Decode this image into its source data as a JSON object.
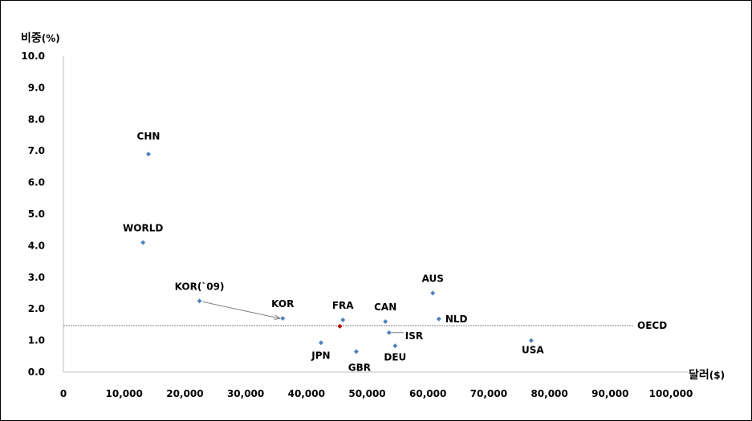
{
  "chart_data": {
    "type": "scatter",
    "ylabel": {
      "main": "비중",
      "unit": "(%)"
    },
    "xlabel": {
      "main": "달러",
      "unit": "($)"
    },
    "xlim": [
      0,
      100000
    ],
    "ylim": [
      0,
      10
    ],
    "x_ticks": [
      "0",
      "10,000",
      "20,000",
      "30,000",
      "40,000",
      "50,000",
      "60,000",
      "70,000",
      "80,000",
      "90,000",
      "100,000"
    ],
    "x_tick_values": [
      0,
      10000,
      20000,
      30000,
      40000,
      50000,
      60000,
      70000,
      80000,
      90000,
      100000
    ],
    "y_ticks": [
      "0.0",
      "1.0",
      "2.0",
      "3.0",
      "4.0",
      "5.0",
      "6.0",
      "7.0",
      "8.0",
      "9.0",
      "10.0"
    ],
    "y_tick_values": [
      0,
      1,
      2,
      3,
      4,
      5,
      6,
      7,
      8,
      9,
      10
    ],
    "grid": false,
    "point_color": "#4F81BD",
    "highlight_color": "#C00000",
    "points": [
      {
        "label": "CHN",
        "x": 14000,
        "y": 6.9
      },
      {
        "label": "WORLD",
        "x": 13100,
        "y": 4.1
      },
      {
        "label": "KOR(`09)",
        "x": 22400,
        "y": 2.25
      },
      {
        "label": "KOR",
        "x": 36100,
        "y": 1.7
      },
      {
        "label": "FRA",
        "x": 46000,
        "y": 1.65
      },
      {
        "label": "CAN",
        "x": 53000,
        "y": 1.6
      },
      {
        "label": "AUS",
        "x": 60800,
        "y": 2.5
      },
      {
        "label": "NLD",
        "x": 61800,
        "y": 1.68
      },
      {
        "label": "ISR",
        "x": 53600,
        "y": 1.25
      },
      {
        "label": "JPN",
        "x": 42400,
        "y": 0.93
      },
      {
        "label": "GBR",
        "x": 48200,
        "y": 0.65
      },
      {
        "label": "DEU",
        "x": 54600,
        "y": 0.83
      },
      {
        "label": "USA",
        "x": 77000,
        "y": 1.0
      }
    ],
    "highlight_point": {
      "x": 45500,
      "y": 1.45
    },
    "reference_line": {
      "label": "OECD",
      "y": 1.47
    },
    "arrow": {
      "from": "KOR(`09)",
      "to": "KOR"
    }
  }
}
